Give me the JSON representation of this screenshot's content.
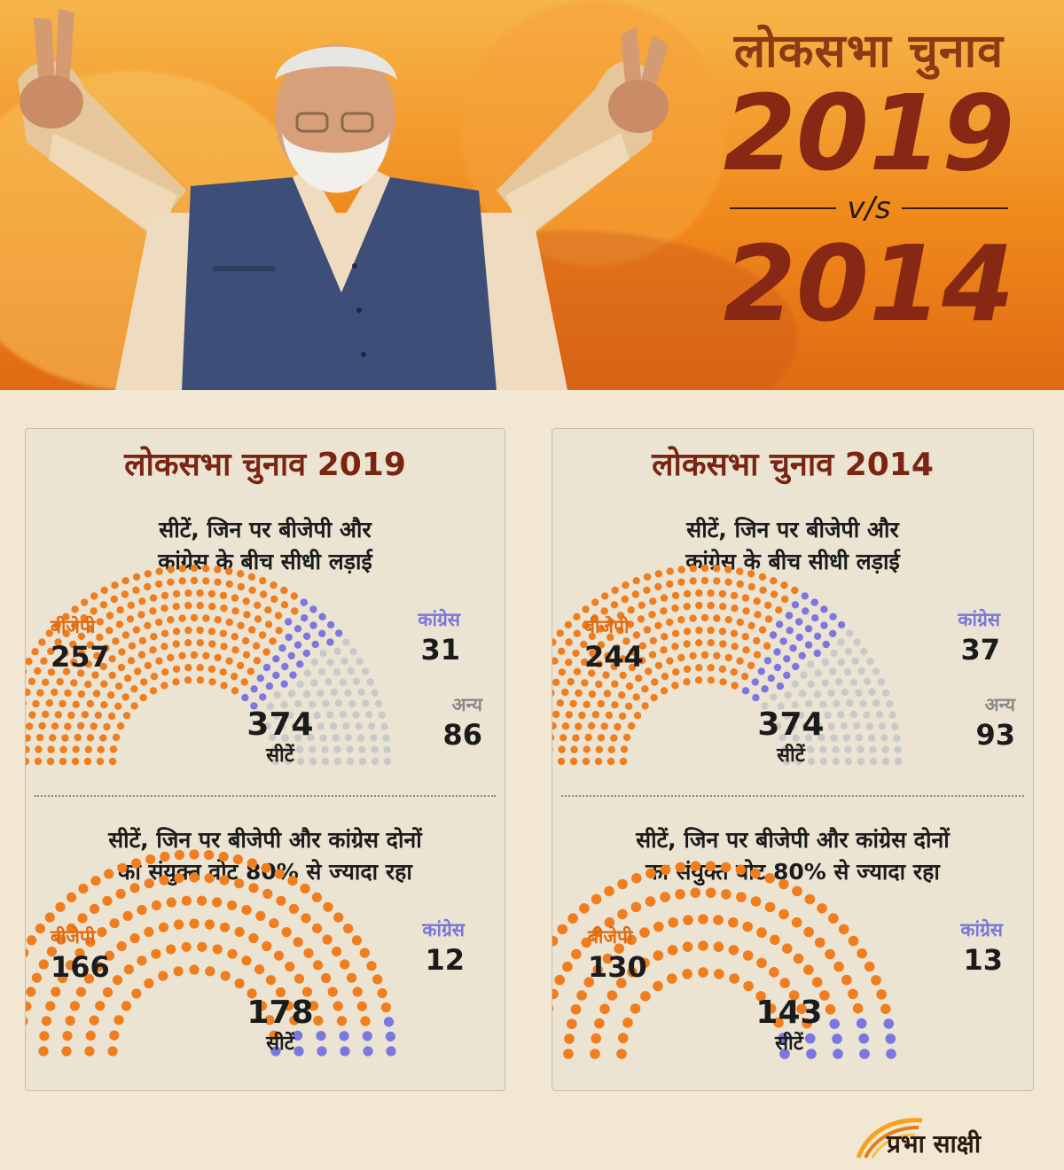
{
  "header": {
    "title_line": "लोकसभा चुनाव",
    "year_top": "2019",
    "versus": "v/s",
    "year_bottom": "2014"
  },
  "colors": {
    "bjp": "#f07d1e",
    "congress": "#7b76e0",
    "others": "#c9c9c9",
    "title": "#7a2412"
  },
  "logo": {
    "text": "प्रभा साक्षी"
  },
  "panels": [
    {
      "title": "लोकसभा चुनाव 2019",
      "top_subtitle_1": "सीटें, जिन पर बीजेपी और",
      "top_subtitle_2": "कांग्रेस के बीच सीधी लड़ाई",
      "bottom_subtitle_1": "सीटें, जिन पर बीजेपी और कांग्रेस दोनों",
      "bottom_subtitle_2": "का संयुक्त वोट 80% से ज्यादा रहा"
    },
    {
      "title": "लोकसभा चुनाव 2014",
      "top_subtitle_1": "सीटें, जिन पर बीजेपी और",
      "top_subtitle_2": "कांग्रेस के बीच सीधी लड़ाई",
      "bottom_subtitle_1": "सीटें, जिन पर बीजेपी और कांग्रेस दोनों",
      "bottom_subtitle_2": "का संयुक्त वोट 80% से ज्यादा रहा"
    }
  ],
  "chart_data": [
    {
      "type": "parliament",
      "title": "लोकसभा चुनाव 2019",
      "subtitle": "सीटें, जिन पर बीजेपी और कांग्रेस के बीच सीधी लड़ाई",
      "total": 374,
      "total_label": "सीटें",
      "series": [
        {
          "name": "बीजेपी",
          "value": 257
        },
        {
          "name": "कांग्रेस",
          "value": 31
        },
        {
          "name": "अन्य",
          "value": 86
        }
      ]
    },
    {
      "type": "parliament",
      "title": "लोकसभा चुनाव 2019",
      "subtitle": "सीटें, जिन पर बीजेपी और कांग्रेस दोनों का संयुक्त वोट 80% से ज्यादा रहा",
      "total": 178,
      "total_label": "सीटें",
      "series": [
        {
          "name": "बीजेपी",
          "value": 166
        },
        {
          "name": "कांग्रेस",
          "value": 12
        }
      ]
    },
    {
      "type": "parliament",
      "title": "लोकसभा चुनाव 2014",
      "subtitle": "सीटें, जिन पर बीजेपी और कांग्रेस के बीच सीधी लड़ाई",
      "total": 374,
      "total_label": "सीटें",
      "series": [
        {
          "name": "बीजेपी",
          "value": 244
        },
        {
          "name": "कांग्रेस",
          "value": 37
        },
        {
          "name": "अन्य",
          "value": 93
        }
      ]
    },
    {
      "type": "parliament",
      "title": "लोकसभा चुनाव 2014",
      "subtitle": "सीटें, जिन पर बीजेपी और कांग्रेस दोनों का संयुक्त वोट 80% से ज्यादा रहा",
      "total": 143,
      "total_label": "सीटें",
      "series": [
        {
          "name": "बीजेपी",
          "value": 130
        },
        {
          "name": "कांग्रेस",
          "value": 13
        }
      ]
    }
  ]
}
